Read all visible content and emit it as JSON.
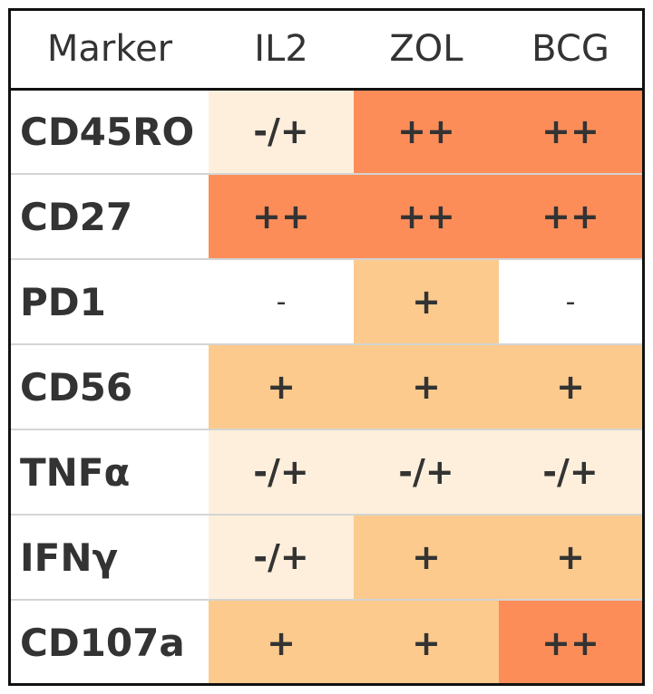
{
  "table": {
    "headers": [
      "Marker",
      "IL2",
      "ZOL",
      "BCG"
    ],
    "rows": [
      {
        "marker": "CD45RO",
        "values": [
          "-/+",
          "++",
          "++"
        ]
      },
      {
        "marker": "CD27",
        "values": [
          "++",
          "++",
          "++"
        ]
      },
      {
        "marker": "PD1",
        "values": [
          "-",
          "+",
          "-"
        ]
      },
      {
        "marker": "CD56",
        "values": [
          "+",
          "+",
          "+"
        ]
      },
      {
        "marker": "TNFα",
        "values": [
          "-/+",
          "-/+",
          "-/+"
        ]
      },
      {
        "marker": "IFNγ",
        "values": [
          "-/+",
          "+",
          "+"
        ]
      },
      {
        "marker": "CD107a",
        "values": [
          "+",
          "+",
          "++"
        ]
      }
    ]
  },
  "level_colors": {
    "-": "#ffffff",
    "-/+": "#feefdc",
    "+": "#fcca8d",
    "++": "#fc8d59"
  }
}
